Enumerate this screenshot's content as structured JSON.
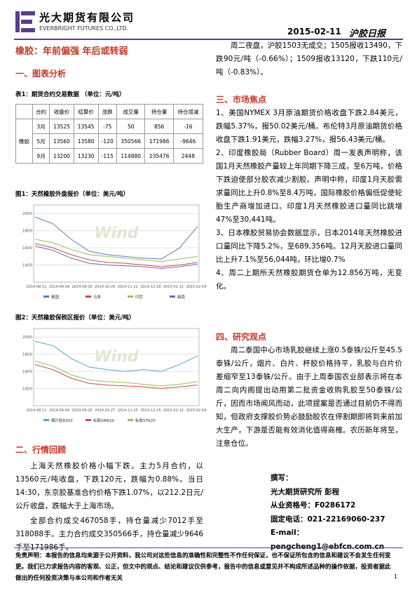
{
  "header": {
    "company": "光大期货有限公司",
    "company_en": "EVERBRIGHT FUTURES CO.,LTD.",
    "date": "2015-02-11",
    "report": "沪胶日报"
  },
  "title": "橡胶：年前偏强 年后或转弱",
  "section1": {
    "heading": "一、图表分析",
    "table_caption": "表1：期货合约交易数据 （单位：元/吨）",
    "table": {
      "header": [
        "合约",
        "收盘价",
        "结算价",
        "涨跌",
        "成交量",
        "持仓量",
        "持仓增减"
      ],
      "product": "橡胶",
      "rows": [
        [
          "3月",
          "13525",
          "13545",
          "-75",
          "50",
          "856",
          "-16"
        ],
        [
          "5月",
          "13560",
          "13580",
          "-120",
          "350566",
          "171986",
          "-9646"
        ],
        [
          "9月",
          "13200",
          "13230",
          "-115",
          "114880",
          "135476",
          "2448"
        ]
      ]
    }
  },
  "figures": [
    {
      "type": "line",
      "caption": "图1：天然橡胶外盘报价（单位：美元/吨）",
      "watermark": "Wind",
      "ylim": [
        1200,
        2100
      ],
      "yticks": [
        1400,
        1600,
        1800,
        2000
      ],
      "x_labels": [
        "2014-08-11",
        "2014-09-09",
        "2014-09-29",
        "2014-10-29",
        "2014-11-21",
        "2014-12-18",
        "2015-01-12",
        "2015-02-04"
      ],
      "series": [
        {
          "name": "泰国",
          "color": "#4f81bd",
          "values": [
            1960,
            1880,
            1700,
            1560,
            1520,
            1500,
            1480,
            1470,
            1600,
            1850
          ]
        },
        {
          "name": "马来",
          "color": "#c0504d",
          "values": [
            1650,
            1600,
            1520,
            1460,
            1430,
            1420,
            1400,
            1380,
            1400,
            1430
          ]
        },
        {
          "name": "印尼",
          "color": "#9bbb59",
          "values": [
            1700,
            1660,
            1580,
            1520,
            1500,
            1480,
            1460,
            1440,
            1470,
            1500
          ]
        },
        {
          "name": "越南",
          "color": "#8064a2",
          "values": [
            1620,
            1570,
            1480,
            1420,
            1400,
            1390,
            1380,
            1360,
            1380,
            1410
          ]
        }
      ]
    },
    {
      "type": "line",
      "caption": "图2：天然橡胶保税区报价（单位：美元/吨）",
      "watermark": "Wind",
      "ylim": [
        1200,
        2100
      ],
      "yticks": [
        1400,
        1600,
        1800,
        2000
      ],
      "x_labels": [
        "2014-08-11",
        "2014-09-04",
        "2014-09-29",
        "2014-10-27",
        "2014-11-20",
        "2014-12-16",
        "2015-01-12",
        "2015-02-04"
      ],
      "series": [
        {
          "name": "烟片胶RSS3",
          "color": "#4bacc6",
          "values": [
            1950,
            1900,
            1750,
            1650,
            1620,
            1600,
            1620,
            1600,
            1680,
            1780
          ]
        },
        {
          "name": "标胶SMR20",
          "color": "#c0504d",
          "values": [
            1680,
            1620,
            1520,
            1460,
            1440,
            1430,
            1420,
            1400,
            1420,
            1440
          ]
        },
        {
          "name": "标胶STR20",
          "color": "#9bbb59",
          "values": [
            1720,
            1660,
            1560,
            1500,
            1480,
            1470,
            1450,
            1430,
            1450,
            1480
          ]
        }
      ]
    }
  ],
  "section2": {
    "heading": "二、行情回顾",
    "paragraphs": [
      "上海天然橡胶价格小幅下跌。主力5月合约，以13560元/吨收盘，下跌120元，跌幅为0.88%。当日14:30，东京胶基准合约价格下跌1.07%，以212.2日元/公斤收盘，跌幅大于上海市场。",
      "全部合约成交467058手，持仓量减少7012手至318088手。主力合约成交350566手，持仓量减少9646手至171986手。"
    ]
  },
  "night": "周二夜盘，沪胶1503无成交；1505报收13490，下跌90元/吨（-0.66%）；1509报收13120，下跌110元/吨（-0.83%）。",
  "section3": {
    "heading": "三、市场焦点",
    "items": [
      "1、美国NYMEX 3月原油期货价格收盘下跌2.84美元，跌幅5.37%，报50.02美元/桶。布伦特3月原油期货价格收盘下跌1.91美元，跌幅3.27%，报56.43美元/桶。",
      "2、印度橡胶局（Rubber Board）周一发表声明称，该国1月天然橡胶产量较上年同期下降三成，至6万吨，价格下跌迫使部分胶农减少割胶。声明中称，印度1月天胶需求量同比上升0.8%至8.4万吨，国际橡胶价格偏低促使轮胎生产商增加进口。印度1月天然橡胶进口量同比跳增47%至30,441吨。",
      "3、日本橡胶贸易协会数据显示，日本2014年天然橡胶进口量同比下降5.2%，至689,356吨。12月天胶进口量同比上升7.1%至56,044吨，环比增0.7%",
      "4、周二上期所天然橡胶期货仓单为12.856万吨，无变化。"
    ]
  },
  "section4": {
    "heading": "四、研究观点",
    "paragraph": "周二泰国中心市场乳胶继续上涨0.5泰铢/公斤至45.5泰铢/公斤，烟片、白片、杯胶价格持平，乳胶与白片价差缩窄至13泰铢/公斤。由于上周泰国农业部表示将在本周二向内阁提出动用第二批资金收购乳胶至50泰铢/公斤，因而市场闻风而动，此项提案是否通过目前仍不得而知，但政府支撑胶价势必鼓励胶农在停割期即将到来前加大生产，下游是否能有效消化值得商榷。农历新年将至，注意仓位。"
  },
  "author": {
    "label": "撰写：",
    "lines": [
      "光大期货研究所 彭程",
      "从业资格号：F0286172",
      "固定电话：021-22169060-237",
      "E-mail：pengcheng1@ebfcn.com.cn"
    ]
  },
  "footer": {
    "disclaimer": "免责声明：本报告的信息均来源于公开资料，我公司对这些信息的准确性和完整性不作任何保证，也不保证所包含的信息和建议不会发生任何变更。我们已力求报告内容的客观、公正，但文中的观点、结论和建议仅供参考，报告中的信息或意见并不构成所述品种的操作依据，投资者据此做出的任何投资决策与本公司和作者无关",
    "page": "1"
  }
}
